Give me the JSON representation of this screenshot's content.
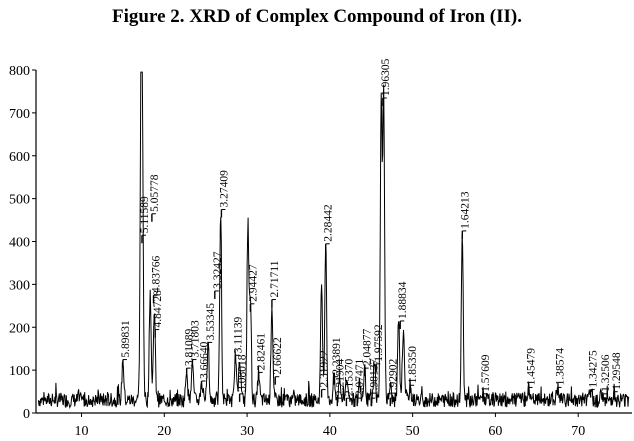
{
  "figure": {
    "title": "Figure 2. XRD of Complex Compound of Iron (II)."
  },
  "chart_data": {
    "type": "line",
    "title": "Figure 2. XRD of Complex Compound of Iron (II).",
    "xlabel": "",
    "ylabel": "",
    "xlim": [
      4.5,
      76.5
    ],
    "ylim": [
      0,
      800
    ],
    "xticks": [
      10,
      20,
      30,
      40,
      50,
      60,
      70
    ],
    "yticks": [
      0,
      100,
      200,
      300,
      400,
      500,
      600,
      700,
      800
    ],
    "grid": false,
    "line_color": "#000000",
    "baseline": 25,
    "peaks": [
      {
        "x": 15.0,
        "y": 120
      },
      {
        "x": 17.2,
        "y": 730
      },
      {
        "x": 17.35,
        "y": 550
      },
      {
        "x": 18.3,
        "y": 280
      },
      {
        "x": 18.8,
        "y": 240
      },
      {
        "x": 22.7,
        "y": 100
      },
      {
        "x": 23.4,
        "y": 120
      },
      {
        "x": 24.5,
        "y": 70
      },
      {
        "x": 25.3,
        "y": 160
      },
      {
        "x": 26.8,
        "y": 470
      },
      {
        "x": 28.6,
        "y": 130
      },
      {
        "x": 29.1,
        "y": 130
      },
      {
        "x": 30.1,
        "y": 440
      },
      {
        "x": 30.4,
        "y": 260
      },
      {
        "x": 31.4,
        "y": 90
      },
      {
        "x": 33.0,
        "y": 250
      },
      {
        "x": 39.0,
        "y": 300
      },
      {
        "x": 39.5,
        "y": 390
      },
      {
        "x": 40.5,
        "y": 80
      },
      {
        "x": 41.2,
        "y": 70
      },
      {
        "x": 42.0,
        "y": 80
      },
      {
        "x": 43.6,
        "y": 70
      },
      {
        "x": 44.2,
        "y": 100
      },
      {
        "x": 45.4,
        "y": 110
      },
      {
        "x": 46.2,
        "y": 720
      },
      {
        "x": 46.5,
        "y": 730
      },
      {
        "x": 47.3,
        "y": 60
      },
      {
        "x": 48.3,
        "y": 210
      },
      {
        "x": 48.9,
        "y": 200
      },
      {
        "x": 49.7,
        "y": 60
      },
      {
        "x": 56.0,
        "y": 420
      },
      {
        "x": 58.5,
        "y": 40
      },
      {
        "x": 64.0,
        "y": 55
      },
      {
        "x": 67.5,
        "y": 55
      },
      {
        "x": 71.5,
        "y": 50
      },
      {
        "x": 73.0,
        "y": 40
      },
      {
        "x": 74.3,
        "y": 45
      }
    ],
    "annotations": [
      {
        "label": "5.89831",
        "x": 15.0,
        "y": 120
      },
      {
        "label": "5.11589",
        "x": 17.3,
        "y": 410
      },
      {
        "label": "5.05778",
        "x": 18.5,
        "y": 460
      },
      {
        "label": "4.83766",
        "x": 18.7,
        "y": 270
      },
      {
        "label": "4.84728",
        "x": 18.9,
        "y": 190
      },
      {
        "label": "3.81089",
        "x": 22.7,
        "y": 100
      },
      {
        "label": "3.71803",
        "x": 23.4,
        "y": 120
      },
      {
        "label": "3.66640",
        "x": 24.5,
        "y": 70
      },
      {
        "label": "3.53345",
        "x": 25.3,
        "y": 160
      },
      {
        "label": "3.32427",
        "x": 26.1,
        "y": 280
      },
      {
        "label": "3.27409",
        "x": 26.9,
        "y": 470
      },
      {
        "label": "3.11139",
        "x": 28.6,
        "y": 130
      },
      {
        "label": "3.08018",
        "x": 29.1,
        "y": 40
      },
      {
        "label": "2.94427",
        "x": 30.4,
        "y": 250
      },
      {
        "label": "2.82461",
        "x": 31.4,
        "y": 90
      },
      {
        "label": "2.71711",
        "x": 33.0,
        "y": 260
      },
      {
        "label": "2.66622",
        "x": 33.4,
        "y": 80
      },
      {
        "label": "2.31922",
        "x": 39.0,
        "y": 50
      },
      {
        "label": "2.28442",
        "x": 39.5,
        "y": 390
      },
      {
        "label": "2.23891",
        "x": 40.5,
        "y": 80
      },
      {
        "label": "2.21904",
        "x": 40.9,
        "y": 30
      },
      {
        "label": "2.15370",
        "x": 42.0,
        "y": 30
      },
      {
        "label": "2.07471",
        "x": 43.3,
        "y": 30
      },
      {
        "label": "2.04877",
        "x": 44.2,
        "y": 100
      },
      {
        "label": "1.98137",
        "x": 45.0,
        "y": 30
      },
      {
        "label": "1.97592",
        "x": 45.6,
        "y": 110
      },
      {
        "label": "1.96305",
        "x": 46.4,
        "y": 730
      },
      {
        "label": "1.92902",
        "x": 47.3,
        "y": 30
      },
      {
        "label": "1.88834",
        "x": 48.5,
        "y": 210
      },
      {
        "label": "1.85350",
        "x": 49.7,
        "y": 60
      },
      {
        "label": "1.64213",
        "x": 56.0,
        "y": 420
      },
      {
        "label": "1.57609",
        "x": 58.5,
        "y": 40
      },
      {
        "label": "1.45479",
        "x": 64.0,
        "y": 55
      },
      {
        "label": "1.38574",
        "x": 67.5,
        "y": 55
      },
      {
        "label": "1.34275",
        "x": 71.5,
        "y": 50
      },
      {
        "label": "1.32506",
        "x": 73.0,
        "y": 40
      },
      {
        "label": "1.29548",
        "x": 74.3,
        "y": 45
      }
    ]
  }
}
